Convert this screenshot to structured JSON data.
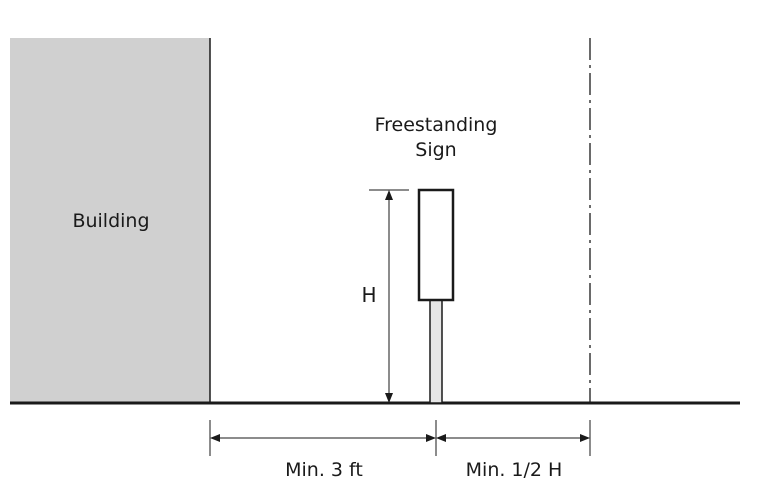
{
  "labels": {
    "building": "Building",
    "sign_line1": "Freestanding",
    "sign_line2": "Sign",
    "height": "H",
    "setback_building": "Min. 3 ft",
    "setback_line": "Min. 1/2 H"
  },
  "colors": {
    "building_fill": "#d0d0d0",
    "line": "#1a1a1a",
    "pole_fill": "#e6e6e6"
  }
}
